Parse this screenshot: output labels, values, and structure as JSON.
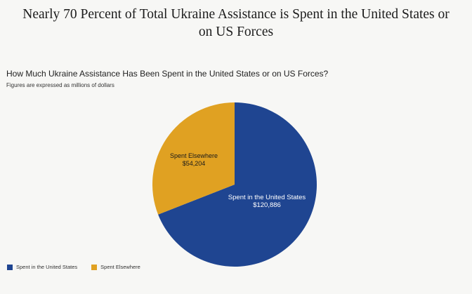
{
  "headline": {
    "line1": "Nearly 70 Percent of Total Ukraine Assistance is Spent in the United States or",
    "line2": "on US Forces"
  },
  "chart_data": {
    "type": "pie",
    "title": "How Much Ukraine Assistance Has Been Spent in the United States or on US Forces?",
    "subtitle": "Figures are expressed as millions of dollars",
    "slices": [
      {
        "name": "Spent in the United States",
        "value": 120886,
        "label": "$120,886",
        "color": "#1f4591"
      },
      {
        "name": "Spent Elsewhere",
        "value": 54204,
        "label": "$54,204",
        "color": "#e0a122"
      }
    ],
    "legend": {
      "position": "bottom-left",
      "items": [
        "Spent in the United States",
        "Spent Elsewhere"
      ]
    }
  }
}
